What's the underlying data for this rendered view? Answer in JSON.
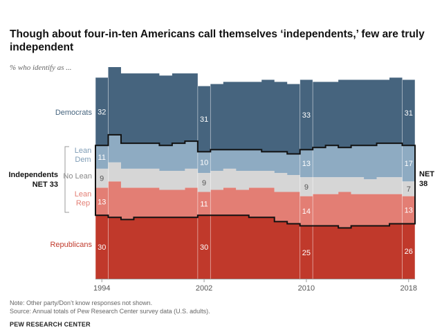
{
  "title": "Though about four-in-ten Americans call themselves ‘independents,’ few are truly independent",
  "subtitle": "% who identify as ...",
  "notes": {
    "note": "Note: Other party/Don’t know responses not shown.",
    "source": "Source: Annual totals of Pew Research Center survey data (U.S. adults).",
    "org": "PEW RESEARCH CENTER"
  },
  "colors": {
    "dem": "#46647e",
    "lean_dem": "#8eabc2",
    "no_lean": "#d6d6d6",
    "lean_rep": "#e37e74",
    "rep": "#c0392b",
    "dem_text": "#46647e",
    "rep_text": "#c0392b"
  },
  "chart_data": {
    "type": "area",
    "x": [
      1994,
      1995,
      1996,
      1997,
      1998,
      1999,
      2000,
      2001,
      2002,
      2003,
      2004,
      2005,
      2006,
      2007,
      2008,
      2009,
      2010,
      2011,
      2012,
      2013,
      2014,
      2015,
      2016,
      2017,
      2018
    ],
    "series": [
      {
        "name": "Republicans",
        "values": [
          30,
          29,
          28,
          29,
          29,
          29,
          29,
          29,
          30,
          30,
          30,
          30,
          29,
          29,
          27,
          26,
          25,
          25,
          25,
          24,
          25,
          25,
          25,
          26,
          26
        ]
      },
      {
        "name": "Lean Rep",
        "values": [
          13,
          17,
          15,
          14,
          14,
          13,
          13,
          14,
          11,
          12,
          13,
          12,
          14,
          14,
          14,
          15,
          14,
          15,
          15,
          17,
          15,
          15,
          15,
          14,
          13
        ]
      },
      {
        "name": "No Lean",
        "values": [
          9,
          9,
          9,
          9,
          9,
          9,
          9,
          9,
          9,
          9,
          9,
          9,
          8,
          8,
          9,
          8,
          9,
          8,
          8,
          7,
          8,
          7,
          8,
          8,
          7
        ]
      },
      {
        "name": "Lean Dem",
        "values": [
          11,
          13,
          12,
          12,
          12,
          12,
          13,
          13,
          10,
          10,
          9,
          10,
          10,
          9,
          10,
          10,
          13,
          14,
          15,
          14,
          15,
          16,
          16,
          16,
          17
        ]
      },
      {
        "name": "Democrats",
        "values": [
          32,
          32,
          33,
          33,
          33,
          33,
          33,
          32,
          31,
          31,
          32,
          32,
          32,
          34,
          33,
          33,
          33,
          31,
          30,
          32,
          31,
          31,
          30,
          31,
          31
        ]
      }
    ],
    "highlight_years": [
      1994,
      2002,
      2010,
      2018
    ],
    "value_labels": [
      {
        "series": "Democrats",
        "year": 1994,
        "text": "32"
      },
      {
        "series": "Democrats",
        "year": 2002,
        "text": "31"
      },
      {
        "series": "Democrats",
        "year": 2010,
        "text": "33"
      },
      {
        "series": "Democrats",
        "year": 2018,
        "text": "31"
      },
      {
        "series": "Lean Dem",
        "year": 1994,
        "text": "11"
      },
      {
        "series": "Lean Dem",
        "year": 2002,
        "text": "10"
      },
      {
        "series": "Lean Dem",
        "year": 2010,
        "text": "13"
      },
      {
        "series": "Lean Dem",
        "year": 2018,
        "text": "17"
      },
      {
        "series": "No Lean",
        "year": 1994,
        "text": "9"
      },
      {
        "series": "No Lean",
        "year": 2002,
        "text": "9"
      },
      {
        "series": "No Lean",
        "year": 2010,
        "text": "9"
      },
      {
        "series": "No Lean",
        "year": 2018,
        "text": "7"
      },
      {
        "series": "Lean Rep",
        "year": 1994,
        "text": "13"
      },
      {
        "series": "Lean Rep",
        "year": 2002,
        "text": "11"
      },
      {
        "series": "Lean Rep",
        "year": 2010,
        "text": "14"
      },
      {
        "series": "Lean Rep",
        "year": 2018,
        "text": "13"
      },
      {
        "series": "Republicans",
        "year": 1994,
        "text": "30"
      },
      {
        "series": "Republicans",
        "year": 2002,
        "text": "30"
      },
      {
        "series": "Republicans",
        "year": 2010,
        "text": "25"
      },
      {
        "series": "Republicans",
        "year": 2018,
        "text": "26"
      }
    ],
    "series_labels": {
      "democrats": "Democrats",
      "lean_dem": [
        "Lean",
        "Dem"
      ],
      "no_lean": "No Lean",
      "lean_rep": [
        "Lean",
        "Rep"
      ],
      "republicans": "Republicans"
    },
    "independents_label": [
      "Independents",
      "NET 33"
    ],
    "net_right_label": [
      "NET",
      "38"
    ],
    "x_tick_labels": [
      "1994",
      "2002",
      "2010",
      "2018"
    ],
    "ylim": [
      0,
      100
    ]
  }
}
